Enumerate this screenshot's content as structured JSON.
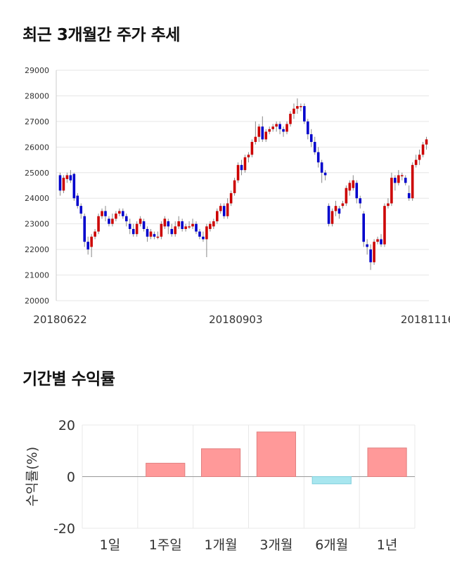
{
  "titles": {
    "price_trend": "최근 3개월간 주가 추세",
    "period_returns": "기간별 수익률"
  },
  "chart_data": [
    {
      "type": "candlestick",
      "title": "최근 3개월간 주가 추세",
      "y_ticks": [
        "29000",
        "28000",
        "27000",
        "26000",
        "25000",
        "24000",
        "23000",
        "22000",
        "21000",
        "20000"
      ],
      "ylim": [
        20000,
        29000
      ],
      "x_tick_labels": [
        "20180622",
        "20180903",
        "20181116"
      ],
      "grid": true,
      "up_color": "#cc0000",
      "down_color": "#0000cc",
      "candles": [
        [
          24900,
          24300,
          25000,
          24100
        ],
        [
          24300,
          24800,
          24900,
          24200
        ],
        [
          24750,
          24900,
          25000,
          24600
        ],
        [
          24900,
          24700,
          25100,
          24600
        ],
        [
          24950,
          24000,
          25000,
          23900
        ],
        [
          24100,
          23700,
          24200,
          23600
        ],
        [
          23700,
          23400,
          23800,
          23200
        ],
        [
          23300,
          22300,
          23400,
          22100
        ],
        [
          22300,
          22000,
          22500,
          21800
        ],
        [
          22100,
          22500,
          22600,
          21700
        ],
        [
          22500,
          22700,
          22800,
          22400
        ],
        [
          22700,
          23300,
          23400,
          22600
        ],
        [
          23300,
          23500,
          23600,
          23200
        ],
        [
          23500,
          23300,
          23700,
          23100
        ],
        [
          23200,
          23000,
          23300,
          22900
        ],
        [
          23000,
          23200,
          23400,
          22900
        ],
        [
          23200,
          23400,
          23500,
          23100
        ],
        [
          23400,
          23500,
          23600,
          23300
        ],
        [
          23500,
          23300,
          23600,
          23200
        ],
        [
          23300,
          23100,
          23400,
          22900
        ],
        [
          23000,
          22800,
          23200,
          22600
        ],
        [
          22800,
          22600,
          23000,
          22500
        ],
        [
          22600,
          23000,
          23100,
          22500
        ],
        [
          23000,
          23200,
          23300,
          22900
        ],
        [
          23100,
          22800,
          23200,
          22700
        ],
        [
          22800,
          22500,
          22900,
          22300
        ],
        [
          22500,
          22700,
          22800,
          22400
        ],
        [
          22600,
          22500,
          22700,
          22400
        ],
        [
          22500,
          22500,
          22700,
          22400
        ],
        [
          22500,
          23000,
          23100,
          22400
        ],
        [
          22900,
          23200,
          23300,
          22800
        ],
        [
          23100,
          22900,
          23200,
          22600
        ],
        [
          22800,
          22600,
          23000,
          22500
        ],
        [
          22600,
          22900,
          23100,
          22500
        ],
        [
          22900,
          23100,
          23300,
          22800
        ],
        [
          23100,
          22800,
          23200,
          22700
        ],
        [
          22800,
          22900,
          23000,
          22700
        ],
        [
          22900,
          22900,
          23100,
          22800
        ],
        [
          22900,
          23000,
          23200,
          22800
        ],
        [
          23000,
          22700,
          23100,
          22600
        ],
        [
          22700,
          22500,
          22800,
          22400
        ],
        [
          22500,
          22400,
          22700,
          22300
        ],
        [
          22400,
          22900,
          23000,
          21700
        ],
        [
          22800,
          23000,
          23100,
          22700
        ],
        [
          22900,
          23100,
          23200,
          22800
        ],
        [
          23100,
          23500,
          23600,
          23000
        ],
        [
          23500,
          23700,
          23800,
          23400
        ],
        [
          23700,
          23300,
          23800,
          23200
        ],
        [
          23300,
          23800,
          24000,
          23200
        ],
        [
          23800,
          24200,
          24300,
          23700
        ],
        [
          24200,
          24700,
          24800,
          24100
        ],
        [
          24700,
          25300,
          25400,
          24600
        ],
        [
          25300,
          25100,
          25500,
          24900
        ],
        [
          25100,
          25600,
          25700,
          25000
        ],
        [
          25600,
          25700,
          25800,
          25400
        ],
        [
          25700,
          26200,
          26300,
          25600
        ],
        [
          26200,
          26400,
          27000,
          26100
        ],
        [
          26400,
          26800,
          26900,
          26200
        ],
        [
          26800,
          26300,
          27200,
          26200
        ],
        [
          26300,
          26600,
          26700,
          26200
        ],
        [
          26600,
          26700,
          26800,
          26500
        ],
        [
          26700,
          26800,
          26900,
          26600
        ],
        [
          26800,
          26900,
          27000,
          26600
        ],
        [
          26900,
          26700,
          27000,
          26500
        ],
        [
          26700,
          26600,
          26800,
          26400
        ],
        [
          26600,
          26900,
          27000,
          26500
        ],
        [
          26900,
          27300,
          27400,
          26800
        ],
        [
          27300,
          27500,
          27700,
          27100
        ],
        [
          27500,
          27600,
          27900,
          27300
        ],
        [
          27600,
          27600,
          27700,
          27400
        ],
        [
          27600,
          27000,
          27700,
          26900
        ],
        [
          27000,
          26500,
          27100,
          26300
        ],
        [
          26500,
          26200,
          26700,
          26000
        ],
        [
          26200,
          25800,
          26400,
          25700
        ],
        [
          25800,
          25400,
          26000,
          25200
        ],
        [
          25400,
          25000,
          25500,
          24600
        ],
        [
          25000,
          24900,
          25100,
          24700
        ],
        [
          23700,
          23000,
          23800,
          22900
        ],
        [
          23000,
          23500,
          23600,
          22900
        ],
        [
          23500,
          23700,
          23900,
          23300
        ],
        [
          23600,
          23400,
          23700,
          23200
        ],
        [
          23700,
          23800,
          23900,
          23600
        ],
        [
          23800,
          24400,
          24500,
          23700
        ],
        [
          24300,
          24600,
          24700,
          24100
        ],
        [
          24400,
          24700,
          24900,
          24300
        ],
        [
          24600,
          24000,
          24700,
          23800
        ],
        [
          24000,
          23800,
          24100,
          23600
        ],
        [
          23400,
          22300,
          23500,
          22100
        ],
        [
          22200,
          22100,
          22400,
          21800
        ],
        [
          22000,
          21500,
          22200,
          21200
        ],
        [
          21500,
          22300,
          22400,
          21400
        ],
        [
          22300,
          22400,
          22500,
          22200
        ],
        [
          22400,
          22200,
          22600,
          22100
        ],
        [
          22200,
          23700,
          23800,
          22100
        ],
        [
          23700,
          23800,
          24000,
          23600
        ],
        [
          23800,
          24800,
          25000,
          23700
        ],
        [
          24800,
          24600,
          24900,
          24300
        ],
        [
          24600,
          24900,
          25100,
          24500
        ],
        [
          24900,
          24900,
          25000,
          24700
        ],
        [
          24800,
          24600,
          24900,
          24500
        ],
        [
          24200,
          24000,
          24500,
          23900
        ],
        [
          24000,
          25300,
          25400,
          23900
        ],
        [
          25300,
          25500,
          25700,
          25200
        ],
        [
          25500,
          25700,
          25900,
          25300
        ],
        [
          25700,
          26100,
          26200,
          25600
        ],
        [
          26100,
          26300,
          26400,
          25900
        ]
      ]
    },
    {
      "type": "bar",
      "title": "기간별 수익률",
      "ylabel": "수익률(%)",
      "categories": [
        "1일",
        "1주일",
        "1개월",
        "3개월",
        "6개월",
        "1년"
      ],
      "values": [
        0,
        5.2,
        10.8,
        17.3,
        -2.8,
        11.1
      ],
      "ylim": [
        -20,
        20
      ],
      "y_ticks": [
        "20",
        "0",
        "-20"
      ],
      "grid": true,
      "positive_color": "#ff9999",
      "negative_color": "#a8e6ef"
    }
  ]
}
